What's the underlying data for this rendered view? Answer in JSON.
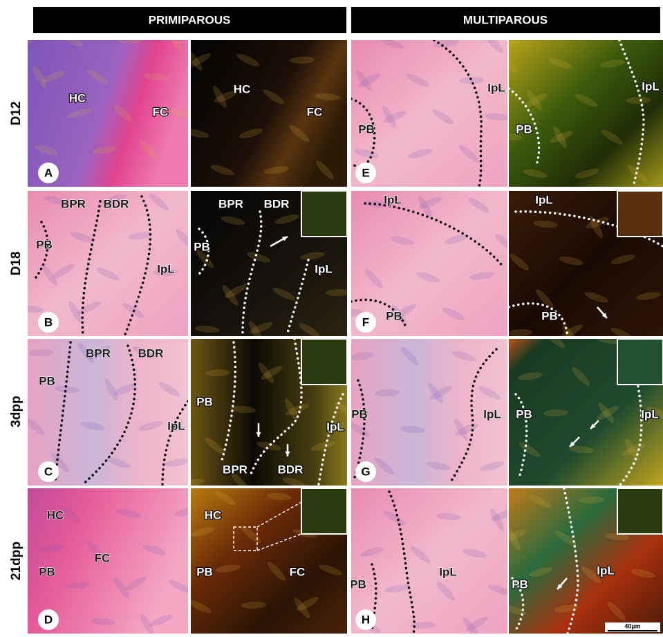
{
  "headers": [
    "PRIMIPAROUS",
    "MULTIPAROUS"
  ],
  "row_labels": [
    "D12",
    "D18",
    "3dpp",
    "21dpp"
  ],
  "panels": [
    {
      "letter": "A",
      "labels": [
        "HC",
        "FC"
      ]
    },
    {
      "labels": [
        "HC",
        "FC"
      ]
    },
    {
      "letter": "E",
      "labels": [
        "IpL",
        "PB"
      ]
    },
    {
      "labels": [
        "PB",
        "IpL"
      ]
    },
    {
      "letter": "B",
      "labels": [
        "BPR",
        "BDR",
        "PB",
        "IpL"
      ]
    },
    {
      "labels": [
        "BPR",
        "BDR",
        "PB",
        "IpL"
      ]
    },
    {
      "letter": "F",
      "labels": [
        "IpL",
        "PB"
      ]
    },
    {
      "labels": [
        "IpL",
        "PB"
      ]
    },
    {
      "letter": "C",
      "labels": [
        "BPR",
        "BDR",
        "PB",
        "IpL"
      ]
    },
    {
      "labels": [
        "PB",
        "BPR",
        "BDR",
        "IpL"
      ]
    },
    {
      "letter": "G",
      "labels": [
        "PB",
        "IpL"
      ]
    },
    {
      "labels": [
        "PB",
        "IpL"
      ]
    },
    {
      "letter": "D",
      "labels": [
        "HC",
        "FC",
        "PB"
      ]
    },
    {
      "labels": [
        "HC",
        "PB",
        "FC"
      ]
    },
    {
      "letter": "H",
      "labels": [
        "PB",
        "IpL"
      ]
    },
    {
      "labels": [
        "PB",
        "IpL"
      ]
    }
  ],
  "scale_bar": "40µm"
}
